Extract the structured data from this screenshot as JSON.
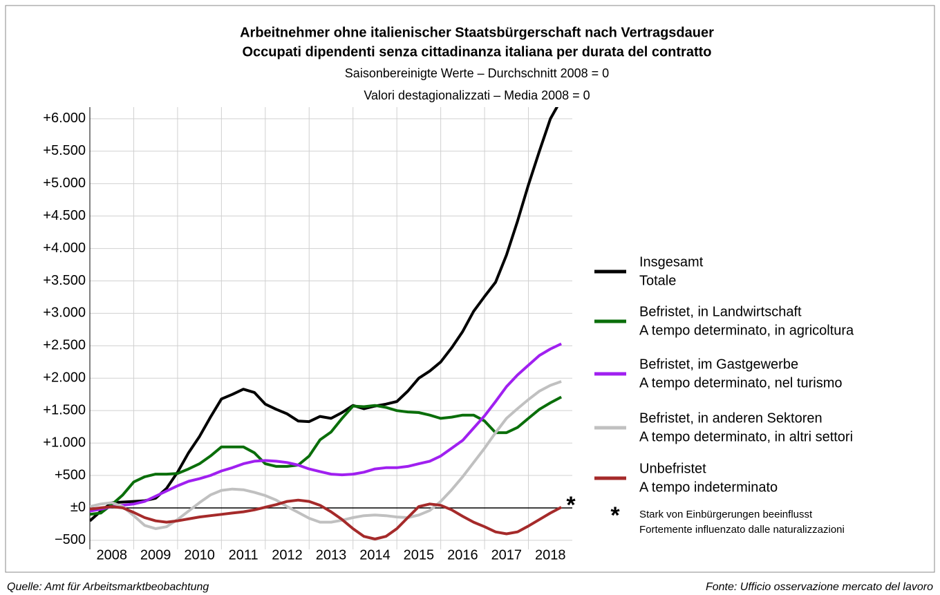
{
  "chart_data": {
    "type": "line",
    "title": "Arbeitnehmer ohne italienischer Staatsbürgerschaft nach Vertragsdauer",
    "title_it": "Occupati dipendenti senza cittadinanza italiana per durata del contratto",
    "subtitle": "Saisonbereinigte Werte – Durchschnitt 2008 = 0",
    "subtitle_it": "Valori destagionalizzati – Media 2008 = 0",
    "title_color": "#1a1aff",
    "source_left": "Quelle: Amt für Arbeitsmarktbeobachtung",
    "source_right": "Fonte: Ufficio osservazione mercato del lavoro",
    "note_marker": "*",
    "note": "Stark von Einbürgerungen beeinflusst",
    "note_it": "Fortemente influenzato dalle naturalizzazioni",
    "negative_color": "#e00000",
    "grid": true,
    "year_labels": [
      "2008",
      "2009",
      "2010",
      "2011",
      "2012",
      "2013",
      "2014",
      "2015",
      "2016",
      "2017",
      "2018"
    ],
    "xlim": [
      2008,
      2019
    ],
    "xticks": [
      2009,
      2010,
      2011,
      2012,
      2013,
      2014,
      2015,
      2016,
      2017,
      2018
    ],
    "x": [
      2008,
      2008.25,
      2008.5,
      2008.75,
      2009,
      2009.25,
      2009.5,
      2009.75,
      2010,
      2010.25,
      2010.5,
      2010.75,
      2011,
      2011.25,
      2011.5,
      2011.75,
      2012,
      2012.25,
      2012.5,
      2012.75,
      2013,
      2013.25,
      2013.5,
      2013.75,
      2014,
      2014.25,
      2014.5,
      2014.75,
      2015,
      2015.25,
      2015.5,
      2015.75,
      2016,
      2016.25,
      2016.5,
      2016.75,
      2017,
      2017.25,
      2017.5,
      2017.75,
      2018,
      2018.25,
      2018.5,
      2018.75
    ],
    "ylim": [
      -640,
      6180
    ],
    "yticks": [
      {
        "value": -500,
        "label": "−500"
      },
      {
        "value": 0,
        "label": "±0"
      },
      {
        "value": 500,
        "label": "+500"
      },
      {
        "value": 1000,
        "label": "+1.000"
      },
      {
        "value": 1500,
        "label": "+1.500"
      },
      {
        "value": 2000,
        "label": "+2.000"
      },
      {
        "value": 2500,
        "label": "+2.500"
      },
      {
        "value": 3000,
        "label": "+3.000"
      },
      {
        "value": 3500,
        "label": "+3.500"
      },
      {
        "value": 4000,
        "label": "+4.000"
      },
      {
        "value": 4500,
        "label": "+4.500"
      },
      {
        "value": 5000,
        "label": "+5.000"
      },
      {
        "value": 5500,
        "label": "+5.500"
      },
      {
        "value": 6000,
        "label": "+6.000"
      }
    ],
    "series": [
      {
        "name": "Insgesamt",
        "name_it": "Totale",
        "color": "#000000",
        "values": [
          -200,
          -50,
          80,
          90,
          100,
          110,
          150,
          300,
          550,
          850,
          1100,
          1400,
          1680,
          1750,
          1830,
          1780,
          1600,
          1520,
          1450,
          1340,
          1330,
          1410,
          1380,
          1470,
          1580,
          1530,
          1570,
          1600,
          1640,
          1800,
          2000,
          2110,
          2250,
          2470,
          2720,
          3030,
          3260,
          3480,
          3900,
          4420,
          4980,
          5500,
          6000,
          6300
        ]
      },
      {
        "name": "Befristet, in Landwirtschaft",
        "name_it": "A tempo determinato, in agricoltura",
        "color": "#0a6e0a",
        "values": [
          -100,
          -80,
          50,
          200,
          400,
          480,
          520,
          520,
          530,
          600,
          680,
          800,
          940,
          940,
          940,
          850,
          680,
          640,
          640,
          660,
          800,
          1050,
          1170,
          1380,
          1570,
          1560,
          1580,
          1550,
          1500,
          1480,
          1470,
          1430,
          1380,
          1400,
          1430,
          1430,
          1340,
          1160,
          1160,
          1240,
          1380,
          1520,
          1620,
          1710
        ]
      },
      {
        "name": "Befristet, im Gastgewerbe",
        "name_it": "A tempo determinato, nel turismo",
        "color": "#a020f0",
        "values": [
          -50,
          -20,
          20,
          40,
          60,
          100,
          180,
          260,
          340,
          410,
          450,
          500,
          570,
          620,
          680,
          720,
          730,
          720,
          700,
          660,
          600,
          560,
          520,
          510,
          520,
          550,
          600,
          620,
          620,
          640,
          680,
          720,
          800,
          920,
          1040,
          1230,
          1420,
          1640,
          1870,
          2050,
          2200,
          2350,
          2450,
          2530
        ]
      },
      {
        "name": "Befristet, in anderen Sektoren",
        "name_it": "A tempo determinato, in altri settori",
        "color": "#c0c0c0",
        "values": [
          20,
          60,
          80,
          20,
          -120,
          -270,
          -320,
          -290,
          -180,
          -50,
          80,
          200,
          270,
          290,
          280,
          240,
          190,
          120,
          20,
          -70,
          -160,
          -220,
          -220,
          -190,
          -150,
          -120,
          -110,
          -120,
          -140,
          -150,
          -110,
          -40,
          100,
          280,
          480,
          700,
          920,
          1160,
          1380,
          1530,
          1670,
          1800,
          1890,
          1950
        ]
      },
      {
        "name": "Unbefristet",
        "name_it": "A tempo indeterminato",
        "color": "#a52a2a",
        "values": [
          -20,
          0,
          20,
          0,
          -70,
          -150,
          -200,
          -220,
          -200,
          -170,
          -140,
          -120,
          -100,
          -80,
          -60,
          -30,
          10,
          50,
          100,
          120,
          100,
          40,
          -60,
          -180,
          -320,
          -440,
          -480,
          -440,
          -320,
          -150,
          20,
          60,
          40,
          -30,
          -130,
          -220,
          -290,
          -370,
          -400,
          -370,
          -280,
          -180,
          -80,
          10
        ]
      }
    ]
  }
}
